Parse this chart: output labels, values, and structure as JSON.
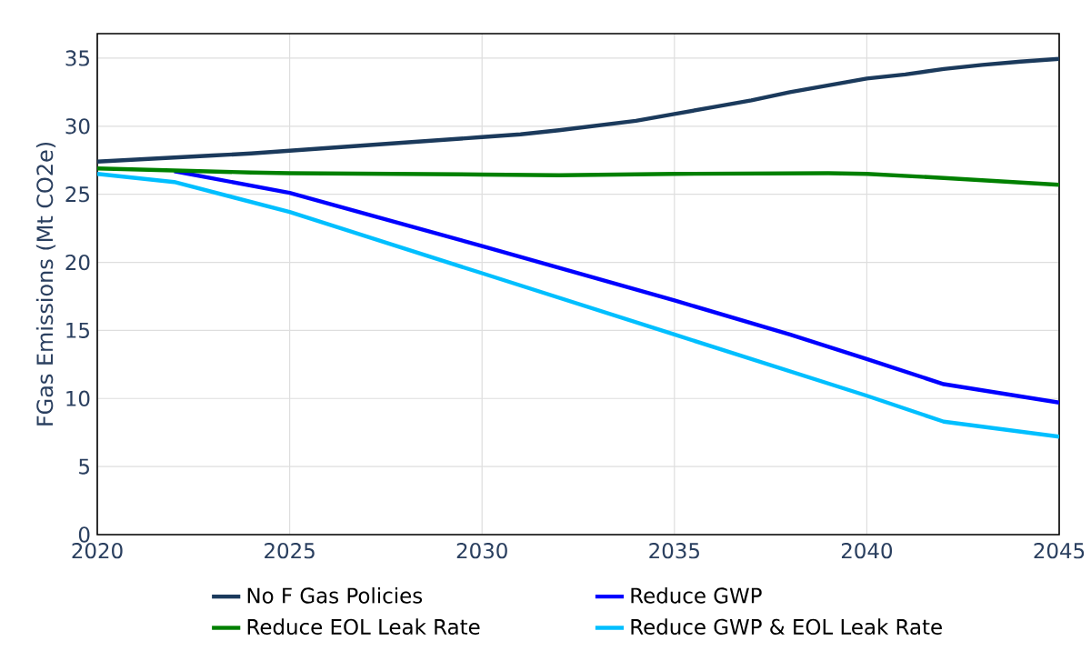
{
  "chart_data": {
    "type": "line",
    "ylabel": "FGas Emissions (Mt CO2e)",
    "xlim": [
      2020,
      2045
    ],
    "xticks": [
      2020,
      2025,
      2030,
      2035,
      2040,
      2045
    ],
    "ylim": [
      0,
      36.8
    ],
    "yticks": [
      0,
      5,
      10,
      15,
      20,
      25,
      30,
      35
    ],
    "grid": true,
    "legend": "bottom",
    "line_style": "solid",
    "marker": "none",
    "series": [
      {
        "name": "No F Gas Policies",
        "color": "#1b3a5c",
        "x": [
          2020,
          2021,
          2022,
          2023,
          2024,
          2025,
          2026,
          2027,
          2028,
          2029,
          2030,
          2031,
          2032,
          2033,
          2034,
          2035,
          2036,
          2037,
          2038,
          2039,
          2040,
          2041,
          2042,
          2043,
          2044,
          2045
        ],
        "values": [
          27.4,
          27.55,
          27.7,
          27.85,
          28.0,
          28.2,
          28.4,
          28.6,
          28.8,
          29.0,
          29.2,
          29.4,
          29.7,
          30.05,
          30.4,
          30.9,
          31.4,
          31.9,
          32.5,
          33.0,
          33.5,
          33.8,
          34.2,
          34.5,
          34.75,
          34.95
        ]
      },
      {
        "name": "Reduce GWP",
        "color": "#0000ff",
        "x": [
          2022,
          2025,
          2030,
          2035,
          2038,
          2040,
          2042,
          2045
        ],
        "values": [
          26.7,
          25.1,
          21.2,
          17.2,
          14.7,
          12.9,
          11.05,
          9.7
        ]
      },
      {
        "name": "Reduce EOL Leak Rate",
        "color": "#008000",
        "x": [
          2020,
          2022,
          2024,
          2025,
          2030,
          2032,
          2035,
          2039,
          2040,
          2042,
          2045
        ],
        "values": [
          26.9,
          26.75,
          26.6,
          26.55,
          26.45,
          26.4,
          26.5,
          26.55,
          26.5,
          26.2,
          25.7
        ]
      },
      {
        "name": "Reduce GWP & EOL Leak Rate",
        "color": "#00bfff",
        "x": [
          2020,
          2022,
          2025,
          2030,
          2035,
          2040,
          2042,
          2045
        ],
        "values": [
          26.5,
          25.9,
          23.7,
          19.2,
          14.7,
          10.2,
          8.3,
          7.2
        ]
      }
    ]
  }
}
